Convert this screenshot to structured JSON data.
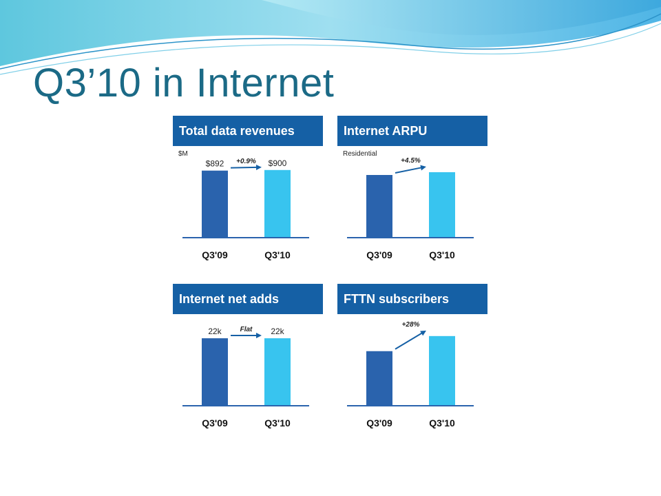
{
  "slide": {
    "title": "Q3’10 in Internet"
  },
  "colors": {
    "bar_prior": "#2a63ad",
    "bar_current": "#38c4ef",
    "header": "#1560a5",
    "title": "#1b6a86"
  },
  "chart_data": [
    {
      "type": "bar",
      "title": "Total data revenues",
      "unit_label": "$M",
      "categories": [
        "Q3'09",
        "Q3'10"
      ],
      "values": [
        892,
        900
      ],
      "value_labels": [
        "$892",
        "$900"
      ],
      "change_label": "+0.9%",
      "ylim": [
        0,
        1000
      ]
    },
    {
      "type": "bar",
      "title": "Internet ARPU",
      "unit_label": "Residential",
      "categories": [
        "Q3'09",
        "Q3'10"
      ],
      "values": [
        1.0,
        1.045
      ],
      "value_labels": [
        "",
        ""
      ],
      "change_label": "+4.5%",
      "ylim": [
        0,
        1.2
      ]
    },
    {
      "type": "bar",
      "title": "Internet net adds",
      "unit_label": "",
      "categories": [
        "Q3'09",
        "Q3'10"
      ],
      "values": [
        22,
        22
      ],
      "value_labels": [
        "22k",
        "22k"
      ],
      "change_label": "Flat",
      "ylim": [
        0,
        24.5
      ]
    },
    {
      "type": "bar",
      "title": "FTTN subscribers",
      "unit_label": "",
      "categories": [
        "Q3'09",
        "Q3'10"
      ],
      "values": [
        1.0,
        1.28
      ],
      "value_labels": [
        "",
        ""
      ],
      "change_label": "+28%",
      "ylim": [
        0,
        1.38
      ]
    }
  ]
}
